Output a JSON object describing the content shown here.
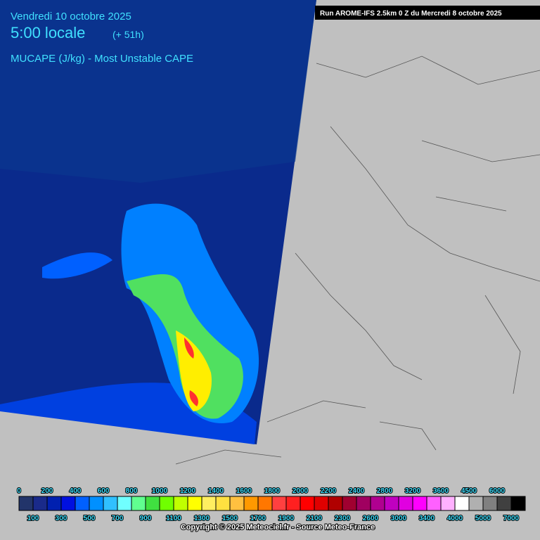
{
  "header": {
    "date": "Vendredi 10 octobre 2025",
    "time": "5:00 locale",
    "offset": "(+ 51h)",
    "parameter": "MUCAPE (J/kg) - Most Unstable CAPE",
    "run": "Run AROME-IFS 2.5km 0 Z du Mercredi 8 octobre 2025"
  },
  "legend": {
    "values": [
      0,
      100,
      200,
      300,
      400,
      500,
      600,
      700,
      800,
      900,
      1000,
      1100,
      1200,
      1300,
      1400,
      1500,
      1600,
      1700,
      1800,
      1900,
      2000,
      2100,
      2200,
      2300,
      2400,
      2600,
      2800,
      3000,
      3200,
      3400,
      3600,
      4000,
      4500,
      5000,
      6000,
      7000
    ],
    "colors": [
      "#22346a",
      "#1a2a8a",
      "#0020b0",
      "#0010e0",
      "#0060ff",
      "#0090ff",
      "#30c0ff",
      "#70ffff",
      "#60ff90",
      "#40e040",
      "#70ff00",
      "#c0ff00",
      "#ffff00",
      "#ffee60",
      "#ffe040",
      "#ffc040",
      "#ff9900",
      "#ff7700",
      "#ff4040",
      "#ff2020",
      "#ff0000",
      "#e00000",
      "#b00000",
      "#a00030",
      "#a00060",
      "#b00090",
      "#c000c0",
      "#e000e0",
      "#ff00ff",
      "#ff60ff",
      "#ffb0ff",
      "#ffffff",
      "#b0b0b0",
      "#808080",
      "#404040",
      "#000000"
    ]
  },
  "footer": {
    "copyright": "Copyright © 2025 Meteociel.fr - Source Meteo-France"
  }
}
